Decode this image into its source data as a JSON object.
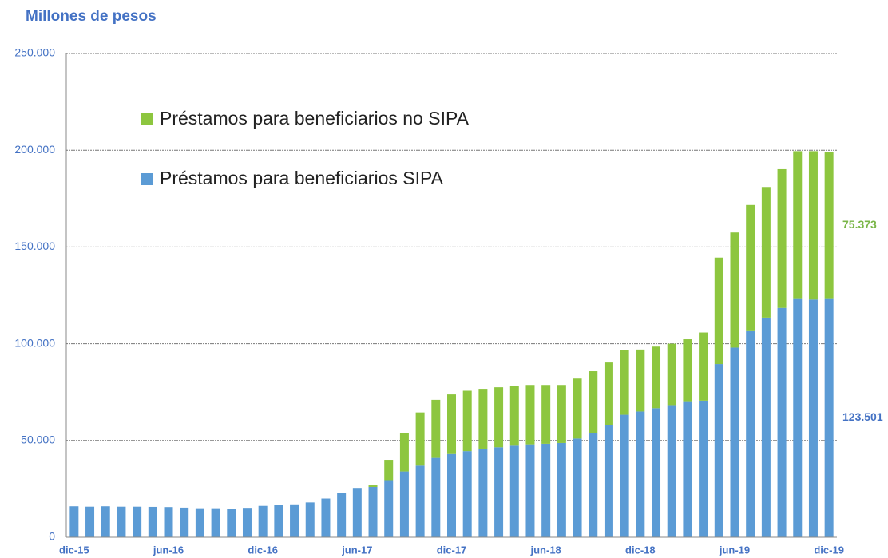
{
  "chart_data": {
    "type": "stacked_bar",
    "title": "Millones de pesos",
    "categories": [
      "dic-15",
      null,
      null,
      null,
      null,
      null,
      "jun-16",
      null,
      null,
      null,
      null,
      null,
      "dic-16",
      null,
      null,
      null,
      null,
      null,
      "jun-17",
      null,
      null,
      null,
      null,
      null,
      "dic-17",
      null,
      null,
      null,
      null,
      null,
      "jun-18",
      null,
      null,
      null,
      null,
      null,
      "dic-18",
      null,
      null,
      null,
      null,
      null,
      "jun-19",
      null,
      null,
      null,
      null,
      null,
      "dic-19"
    ],
    "series": [
      {
        "name": "Préstamos para beneficiarios SIPA",
        "color": "#5b9bd5",
        "values": [
          16000,
          15800,
          16000,
          15800,
          15800,
          15700,
          15600,
          15300,
          15000,
          15000,
          14800,
          15200,
          16200,
          16800,
          17000,
          18000,
          20000,
          22700,
          25500,
          26000,
          29500,
          34000,
          37000,
          41000,
          43000,
          44500,
          45800,
          46500,
          47300,
          48000,
          48300,
          48700,
          51000,
          54000,
          58000,
          63300,
          65000,
          66700,
          68300,
          70300,
          70600,
          89500,
          98000,
          106500,
          113500,
          118500,
          123500,
          122800,
          123501
        ],
        "value_labels": [
          null,
          null,
          null,
          null,
          null,
          null,
          null,
          null,
          null,
          null,
          null,
          null,
          null,
          null,
          null,
          null,
          null,
          null,
          null,
          null,
          null,
          null,
          null,
          null,
          null,
          null,
          null,
          null,
          null,
          null,
          null,
          null,
          null,
          null,
          null,
          null,
          null,
          null,
          null,
          null,
          null,
          null,
          null,
          null,
          null,
          null,
          null,
          null,
          "123.501"
        ]
      },
      {
        "name": "Préstamos para beneficiarios no SIPA",
        "color": "#8dc63f",
        "values": [
          0,
          0,
          0,
          0,
          0,
          0,
          0,
          0,
          0,
          0,
          0,
          0,
          0,
          0,
          0,
          0,
          0,
          0,
          0,
          800,
          10500,
          20000,
          27500,
          30000,
          30800,
          31200,
          30900,
          31000,
          31000,
          30700,
          30400,
          30000,
          31000,
          31800,
          32300,
          33500,
          32000,
          31800,
          31700,
          32000,
          35200,
          55000,
          59500,
          65200,
          67500,
          71700,
          76000,
          76700,
          75373
        ],
        "value_labels": [
          null,
          null,
          null,
          null,
          null,
          null,
          null,
          null,
          null,
          null,
          null,
          null,
          null,
          null,
          null,
          null,
          null,
          null,
          null,
          null,
          null,
          null,
          null,
          null,
          null,
          null,
          null,
          null,
          null,
          null,
          null,
          null,
          null,
          null,
          null,
          null,
          null,
          null,
          null,
          null,
          null,
          null,
          null,
          null,
          null,
          null,
          null,
          null,
          "75.373"
        ]
      }
    ],
    "ylim": [
      0,
      250000
    ],
    "yticks": [
      0,
      {
        "value": 50000,
        "label": "50.000"
      },
      {
        "value": 100000,
        "label": "100.000"
      },
      {
        "value": 150000,
        "label": "150.000"
      },
      {
        "value": 200000,
        "label": "200.000"
      },
      {
        "value": 250000,
        "label": "250.000"
      }
    ],
    "grid": true,
    "legend": "top-left"
  }
}
